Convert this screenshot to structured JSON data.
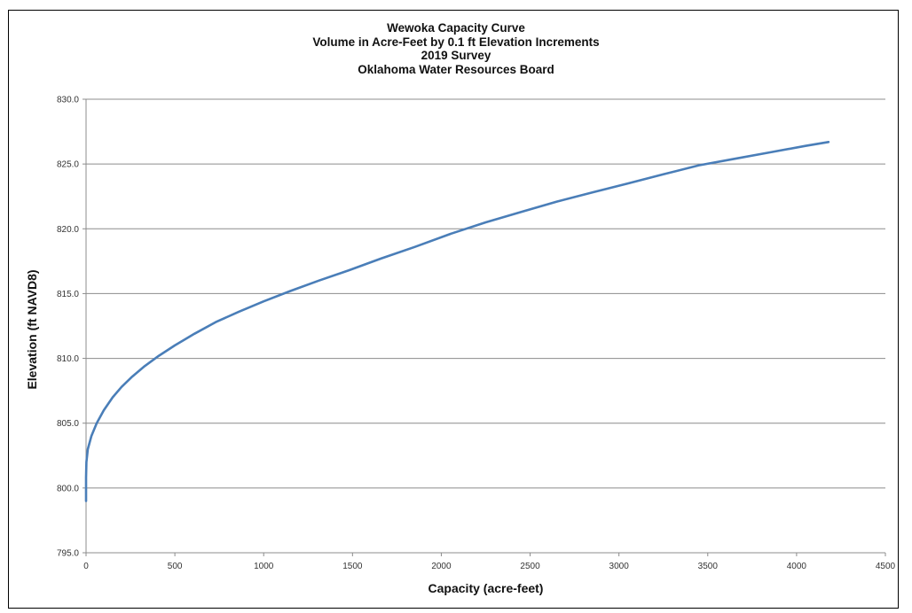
{
  "chart_data": {
    "type": "line",
    "title": "Wewoka Capacity Curve",
    "subtitle": [
      "Volume in Acre-Feet by 0.1 ft Elevation Increments",
      "2019 Survey",
      "Oklahoma Water Resources Board"
    ],
    "xlabel": "Capacity (acre-feet)",
    "ylabel": "Elevation (ft NAVD8)",
    "xlim": [
      0,
      4500
    ],
    "ylim": [
      795,
      830
    ],
    "x_ticks": [
      "0",
      "500",
      "1000",
      "1500",
      "2000",
      "2500",
      "3000",
      "3500",
      "4000",
      "4500"
    ],
    "y_ticks": [
      "795.0",
      "800.0",
      "805.0",
      "810.0",
      "815.0",
      "820.0",
      "825.0",
      "830.0"
    ],
    "grid": "horizontal",
    "legend": "none",
    "series": [
      {
        "color": "#4a7eb8",
        "x": [
          0,
          0,
          2,
          10,
          30,
          60,
          100,
          150,
          200,
          260,
          330,
          410,
          500,
          610,
          730,
          860,
          1000,
          1150,
          1310,
          1480,
          1660,
          1850,
          2050,
          2250,
          2450,
          2650,
          2850,
          3050,
          3250,
          3450,
          3650,
          3850,
          4050,
          4180
        ],
        "y": [
          799.0,
          800.8,
          802.0,
          803.0,
          804.0,
          805.0,
          806.0,
          807.0,
          807.8,
          808.6,
          809.4,
          810.2,
          811.0,
          811.9,
          812.8,
          813.6,
          814.4,
          815.2,
          816.0,
          816.8,
          817.7,
          818.6,
          819.6,
          820.5,
          821.3,
          822.1,
          822.8,
          823.5,
          824.2,
          824.9,
          825.4,
          825.9,
          826.4,
          826.7
        ]
      }
    ]
  }
}
